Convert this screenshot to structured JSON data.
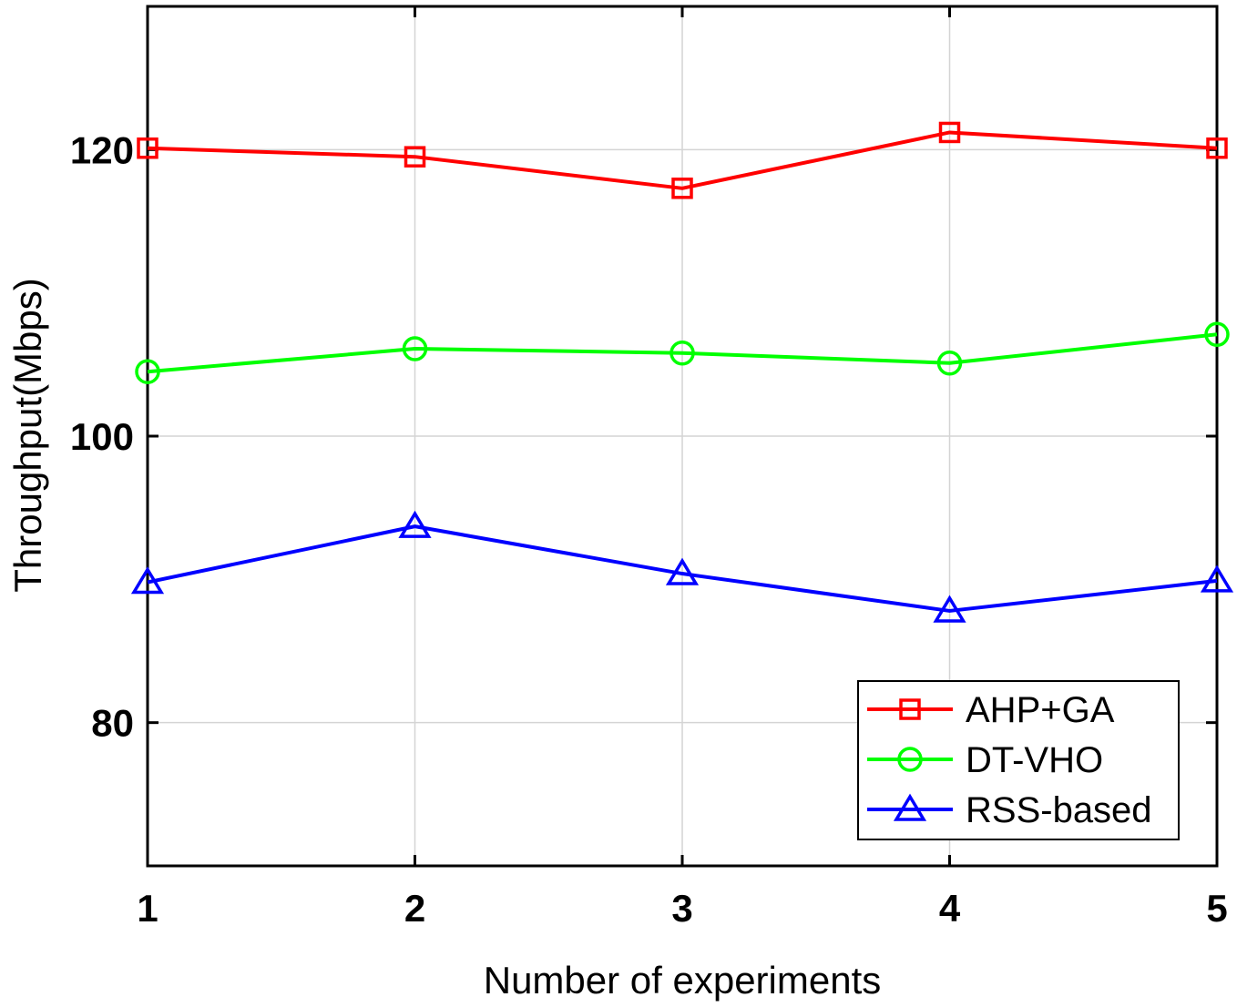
{
  "chart_data": {
    "type": "line",
    "title": "",
    "xlabel": "Number of experiments",
    "ylabel": "Throughput(Mbps)",
    "x": [
      1,
      2,
      3,
      4,
      5
    ],
    "xticks": [
      "1",
      "2",
      "3",
      "4",
      "5"
    ],
    "yticks": [
      80,
      100,
      120
    ],
    "xlim": [
      1,
      5
    ],
    "ylim": [
      70,
      130
    ],
    "grid": true,
    "legend_position": "bottom-right",
    "series": [
      {
        "name": "AHP+GA",
        "color": "#ff0000",
        "marker": "square",
        "values": [
          120.1,
          119.5,
          117.3,
          121.2,
          120.1
        ]
      },
      {
        "name": "DT-VHO",
        "color": "#00ff00",
        "marker": "circle",
        "values": [
          104.5,
          106.1,
          105.8,
          105.1,
          107.1
        ]
      },
      {
        "name": "RSS-based",
        "color": "#0000ff",
        "marker": "triangle",
        "values": [
          89.8,
          93.7,
          90.4,
          87.8,
          89.9
        ]
      }
    ]
  }
}
